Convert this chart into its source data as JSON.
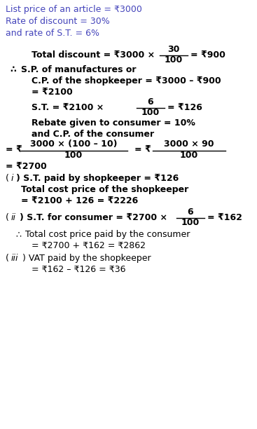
{
  "bg_color": "#ffffff",
  "header_color": "#4444bb",
  "bk": "#000000",
  "fs": 9.0,
  "header_lines": [
    "List price of an article = ₹3000",
    "Rate of discount = 30%",
    "and rate of S.T. = 6%"
  ]
}
